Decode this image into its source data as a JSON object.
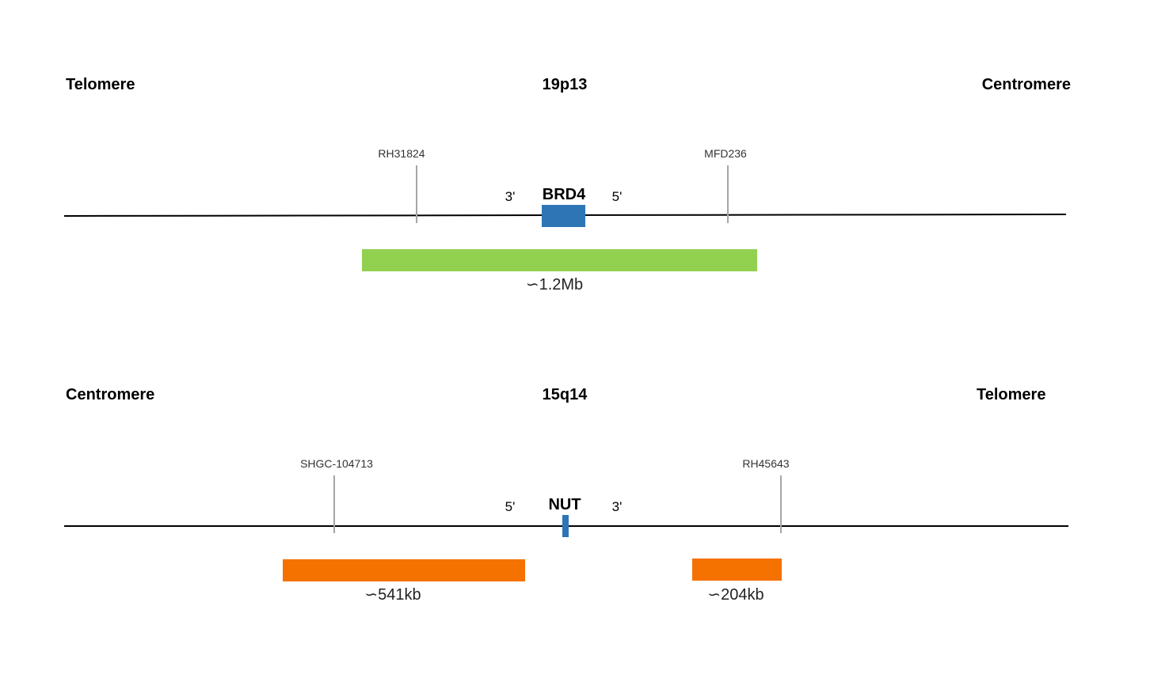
{
  "top": {
    "left_label": "Telomere",
    "band": "19p13",
    "right_label": "Centromere",
    "marker_left": "RH31824",
    "marker_right": "MFD236",
    "gene": "BRD4",
    "end_left": "3'",
    "end_right": "5'",
    "probe_label": "∽1.2Mb",
    "colors": {
      "gene": "#2e75b6",
      "probe": "#92d050"
    }
  },
  "bottom": {
    "left_label": "Centromere",
    "band": "15q14",
    "right_label": "Telomere",
    "marker_left": "SHGC-104713",
    "marker_right": "RH45643",
    "gene": "NUT",
    "end_left": "5'",
    "end_right": "3'",
    "probe_left_label": "∽541kb",
    "probe_right_label": "∽204kb",
    "colors": {
      "gene": "#2e75b6",
      "probe": "#f57100"
    }
  }
}
